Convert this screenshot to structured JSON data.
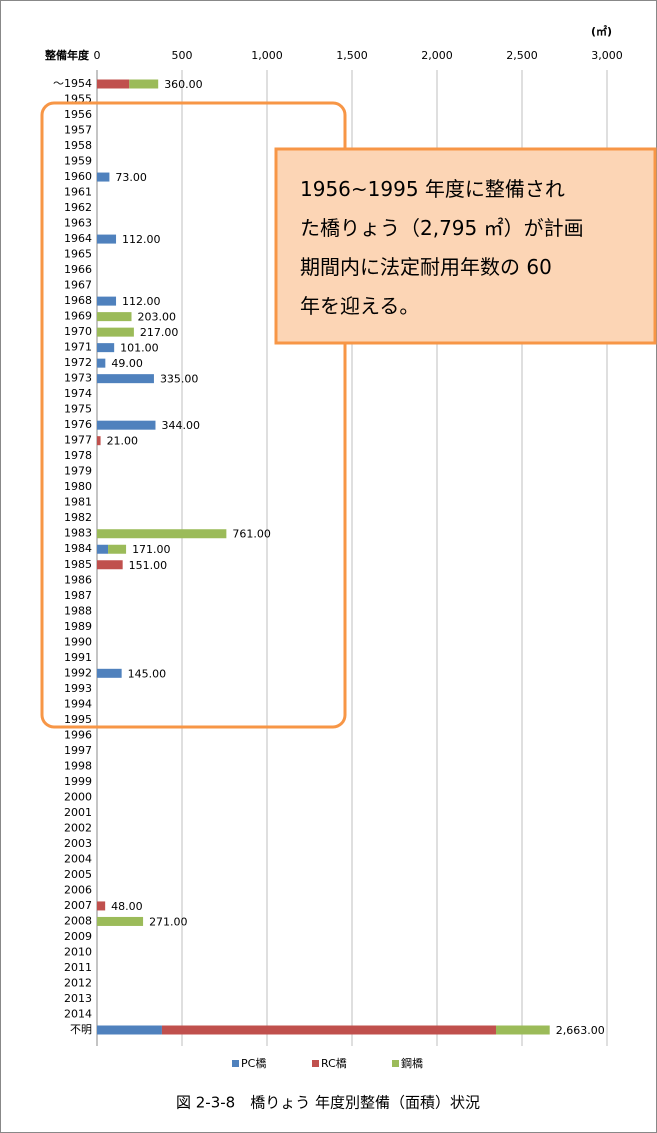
{
  "chart_data": {
    "type": "stacked-barh",
    "y_axis_label": "整備年度",
    "unit_label": "(㎡)",
    "caption": "図 2-3-8　橋りょう 年度別整備（面積）状況",
    "annotation": {
      "lines": [
        "1956~1995 年度に整備され",
        "た橋りょう（2,795 ㎡）が計画",
        "期間内に法定耐用年数の 60",
        "年を迎える。"
      ]
    },
    "categories": [
      "～1954",
      "1955",
      "1956",
      "1957",
      "1958",
      "1959",
      "1960",
      "1961",
      "1962",
      "1963",
      "1964",
      "1965",
      "1966",
      "1967",
      "1968",
      "1969",
      "1970",
      "1971",
      "1972",
      "1973",
      "1974",
      "1975",
      "1976",
      "1977",
      "1978",
      "1979",
      "1980",
      "1981",
      "1982",
      "1983",
      "1984",
      "1985",
      "1986",
      "1987",
      "1988",
      "1989",
      "1990",
      "1991",
      "1992",
      "1993",
      "1994",
      "1995",
      "1996",
      "1997",
      "1998",
      "1999",
      "2000",
      "2001",
      "2002",
      "2003",
      "2004",
      "2005",
      "2006",
      "2007",
      "2008",
      "2009",
      "2010",
      "2011",
      "2012",
      "2013",
      "2014",
      "不明"
    ],
    "series": [
      {
        "name": "PC橋",
        "color": "#4f81bd",
        "values": [
          null,
          null,
          null,
          null,
          null,
          null,
          73,
          null,
          null,
          null,
          112,
          null,
          null,
          null,
          112,
          null,
          null,
          101,
          49,
          335,
          null,
          null,
          344,
          null,
          null,
          null,
          null,
          null,
          null,
          null,
          65,
          null,
          null,
          null,
          null,
          null,
          null,
          null,
          145,
          null,
          null,
          null,
          null,
          null,
          null,
          null,
          null,
          null,
          null,
          null,
          null,
          null,
          null,
          null,
          null,
          null,
          null,
          null,
          null,
          null,
          null,
          382
        ]
      },
      {
        "name": "RC橋",
        "color": "#c0504d",
        "values": [
          190,
          null,
          null,
          null,
          null,
          null,
          null,
          null,
          null,
          null,
          null,
          null,
          null,
          null,
          null,
          null,
          null,
          null,
          null,
          null,
          null,
          null,
          null,
          21,
          null,
          null,
          null,
          null,
          null,
          null,
          null,
          151,
          null,
          null,
          null,
          null,
          null,
          null,
          null,
          null,
          null,
          null,
          null,
          null,
          null,
          null,
          null,
          null,
          null,
          null,
          null,
          null,
          null,
          48,
          null,
          null,
          null,
          null,
          null,
          null,
          null,
          1965
        ]
      },
      {
        "name": "鋼橋",
        "color": "#9bbb59",
        "values": [
          170,
          null,
          null,
          null,
          null,
          null,
          null,
          null,
          null,
          null,
          null,
          null,
          null,
          null,
          null,
          203,
          217,
          null,
          null,
          null,
          null,
          null,
          null,
          null,
          null,
          null,
          null,
          null,
          null,
          761,
          106,
          null,
          null,
          null,
          null,
          null,
          null,
          null,
          null,
          null,
          null,
          null,
          null,
          null,
          null,
          null,
          null,
          null,
          null,
          null,
          null,
          null,
          null,
          null,
          271,
          null,
          null,
          null,
          null,
          null,
          null,
          316
        ]
      }
    ],
    "totals": [
      360,
      null,
      null,
      null,
      null,
      null,
      73,
      null,
      null,
      null,
      112,
      null,
      null,
      null,
      112,
      203,
      217,
      101,
      49,
      335,
      null,
      null,
      344,
      21,
      null,
      null,
      null,
      null,
      null,
      761,
      171,
      151,
      null,
      null,
      null,
      null,
      null,
      null,
      145,
      null,
      null,
      null,
      null,
      null,
      null,
      null,
      null,
      null,
      null,
      null,
      null,
      null,
      null,
      48,
      271,
      null,
      null,
      null,
      null,
      null,
      null,
      2663
    ],
    "total_labels": [
      "360.00",
      null,
      null,
      null,
      null,
      null,
      "73.00",
      null,
      null,
      null,
      "112.00",
      null,
      null,
      null,
      "112.00",
      "203.00",
      "217.00",
      "101.00",
      "49.00",
      "335.00",
      null,
      null,
      "344.00",
      "21.00",
      null,
      null,
      null,
      null,
      null,
      "761.00",
      "171.00",
      "151.00",
      null,
      null,
      null,
      null,
      null,
      null,
      "145.00",
      null,
      null,
      null,
      null,
      null,
      null,
      null,
      null,
      null,
      null,
      null,
      null,
      null,
      null,
      "48.00",
      "271.00",
      null,
      null,
      null,
      null,
      null,
      null,
      "2,663.00"
    ],
    "xlim": [
      0,
      3000
    ],
    "xticks": [
      0,
      500,
      {
        "value": 1000,
        "label": "1,000"
      },
      {
        "value": 1500,
        "label": "1,500"
      },
      {
        "value": 2000,
        "label": "2,000"
      },
      {
        "value": 2500,
        "label": "2,500"
      },
      {
        "value": 3000,
        "label": "3,000"
      }
    ],
    "grid": true,
    "legend": "bottom"
  }
}
